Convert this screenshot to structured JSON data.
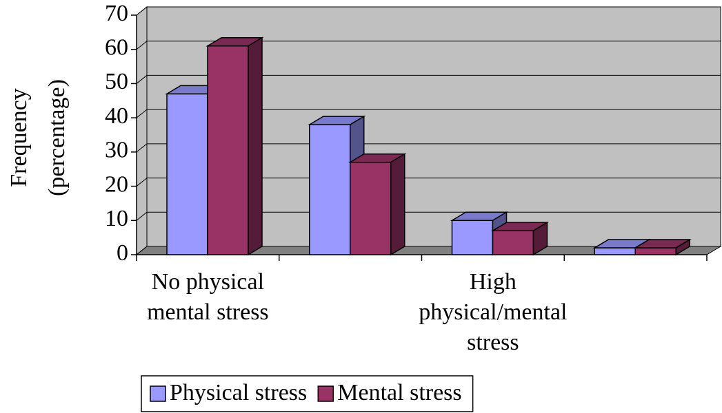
{
  "chart_data": {
    "type": "bar3d",
    "y_label": [
      "Frequency",
      "(percentage)"
    ],
    "categories": [
      "No physical mental stress",
      null,
      "High physical/mental stress",
      null
    ],
    "series": [
      {
        "name": "Physical stress",
        "color": "#9999ff",
        "values": [
          47,
          38,
          10,
          2
        ]
      },
      {
        "name": "Mental stress",
        "color": "#993366",
        "values": [
          61,
          27,
          7,
          2
        ]
      }
    ],
    "ylim": [
      0,
      70
    ],
    "yticks": [
      0,
      10,
      20,
      30,
      40,
      50,
      60,
      70
    ],
    "grid": true,
    "legend": "bottom"
  }
}
